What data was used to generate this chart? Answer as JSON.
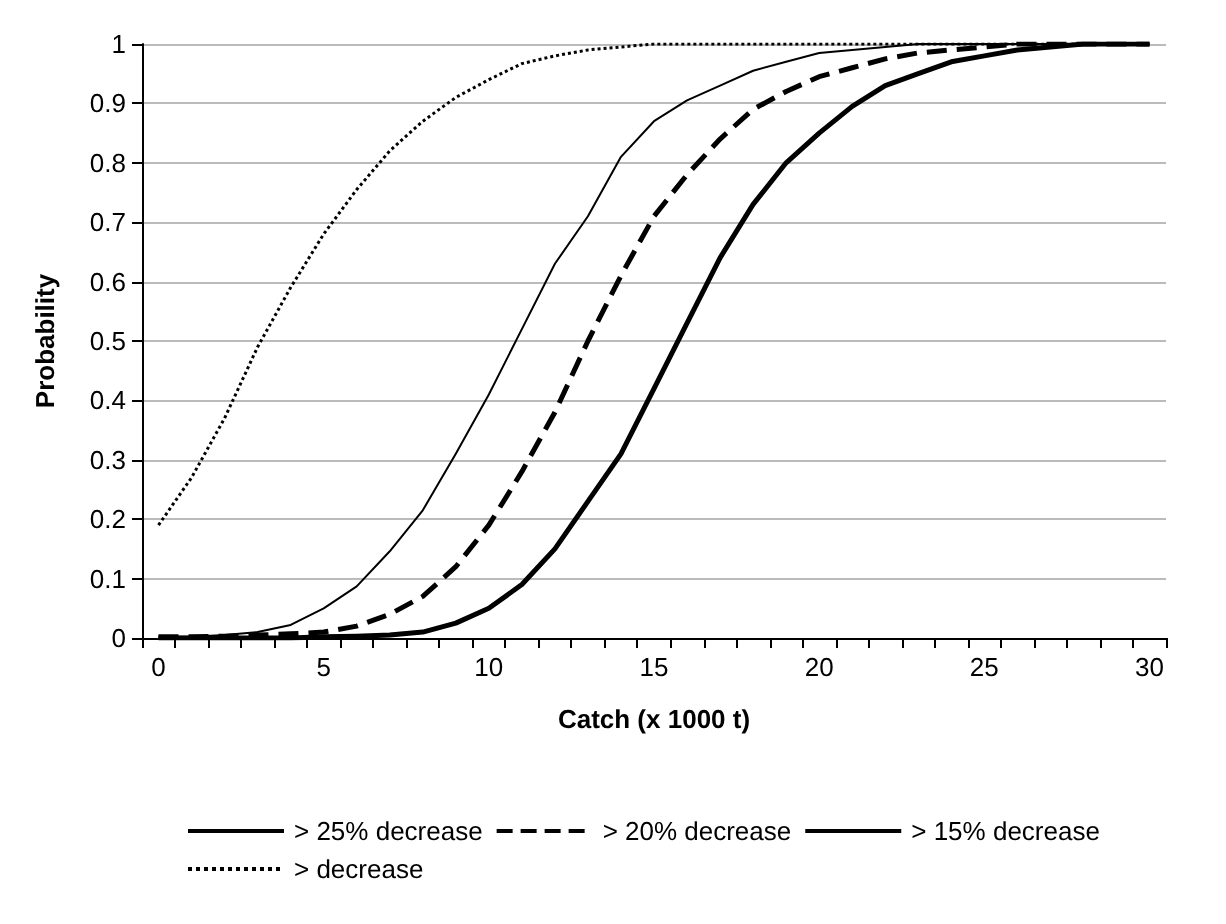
{
  "chart_data": {
    "type": "line",
    "xlabel": "Catch (x 1000 t)",
    "ylabel": "Probability",
    "categories": [
      "0",
      null,
      null,
      null,
      null,
      "5",
      null,
      null,
      null,
      null,
      "10",
      null,
      null,
      null,
      null,
      "15",
      null,
      null,
      null,
      null,
      "20",
      null,
      null,
      null,
      null,
      "25",
      null,
      null,
      null,
      null,
      "30"
    ],
    "ylim": [
      0,
      1
    ],
    "yticks": [
      0,
      0.1,
      0.2,
      0.3,
      0.4,
      0.5,
      0.6,
      0.7,
      0.8,
      0.9,
      1
    ],
    "grid": "y",
    "legend": "bottom",
    "marker": "none",
    "series": [
      {
        "name": "> 25% decrease",
        "color": "#000000",
        "line_style": "solid",
        "values": [
          0,
          0,
          0,
          0,
          0,
          0.002,
          0.003,
          0.005,
          0.01,
          0.025,
          0.05,
          0.09,
          0.15,
          0.23,
          0.31,
          0.42,
          0.53,
          0.64,
          0.73,
          0.8,
          0.85,
          0.895,
          0.93,
          0.95,
          0.97,
          0.98,
          0.99,
          0.995,
          1,
          1,
          1
        ]
      },
      {
        "name": "> 20% decrease",
        "color": "#000000",
        "line_style": "dashed",
        "values": [
          0.002,
          0.002,
          0.003,
          0.005,
          0.007,
          0.01,
          0.02,
          0.04,
          0.07,
          0.12,
          0.19,
          0.28,
          0.38,
          0.5,
          0.61,
          0.71,
          0.78,
          0.84,
          0.89,
          0.92,
          0.945,
          0.96,
          0.975,
          0.985,
          0.99,
          0.995,
          1,
          1,
          1,
          1,
          1
        ]
      },
      {
        "name": "> 15% decrease",
        "color": "#000000",
        "line_style": "solid",
        "values": [
          0.002,
          0.002,
          0.005,
          0.01,
          0.022,
          0.05,
          0.087,
          0.146,
          0.215,
          0.31,
          0.41,
          0.52,
          0.63,
          0.71,
          0.81,
          0.87,
          0.905,
          0.93,
          0.955,
          0.97,
          0.985,
          0.99,
          0.995,
          1,
          1,
          1,
          1,
          1,
          1,
          1,
          1
        ]
      },
      {
        "name": "> decrease",
        "color": "#000000",
        "line_style": "dotted",
        "values": [
          0.19,
          0.27,
          0.37,
          0.49,
          0.59,
          0.68,
          0.755,
          0.82,
          0.87,
          0.91,
          0.94,
          0.967,
          0.98,
          0.99,
          0.995,
          1,
          1,
          1,
          1,
          1,
          1,
          1,
          1,
          1,
          1,
          1,
          1,
          1,
          1,
          1,
          1
        ]
      }
    ]
  }
}
